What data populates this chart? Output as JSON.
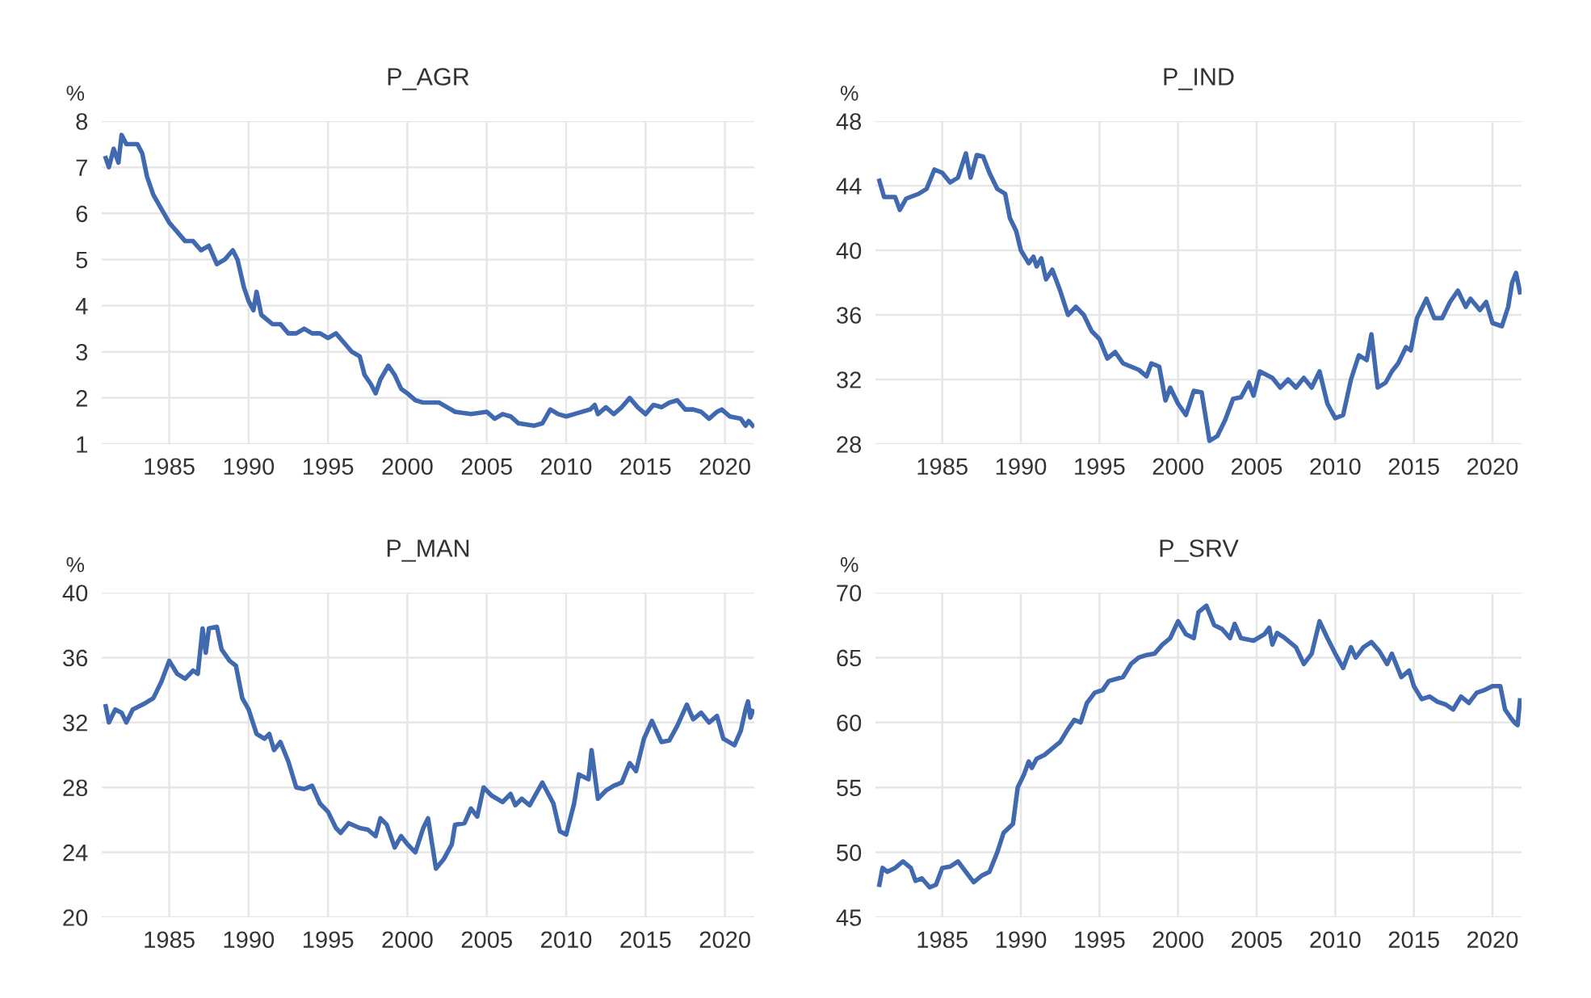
{
  "chart_data": [
    {
      "type": "line",
      "title": "P_AGR",
      "ylabel": "%",
      "xlim": [
        1980.75,
        2021.85
      ],
      "ylim": [
        1,
        8
      ],
      "xticks": [
        1985,
        1990,
        1995,
        2000,
        2005,
        2010,
        2015,
        2020
      ],
      "yticks": [
        1,
        2,
        3,
        4,
        5,
        6,
        7,
        8
      ],
      "grid": true,
      "x": [
        1981.0,
        1981.2,
        1981.5,
        1981.8,
        1982.0,
        1982.3,
        1983.0,
        1983.3,
        1983.6,
        1984.0,
        1984.5,
        1985.0,
        1985.5,
        1986.0,
        1986.5,
        1987.0,
        1987.5,
        1988.0,
        1988.5,
        1989.0,
        1989.3,
        1989.7,
        1990.0,
        1990.3,
        1990.5,
        1990.8,
        1991.5,
        1992.0,
        1992.5,
        1993.0,
        1993.5,
        1994.0,
        1994.5,
        1995.0,
        1995.5,
        1996.0,
        1996.5,
        1997.0,
        1997.3,
        1997.7,
        1998.0,
        1998.3,
        1998.8,
        1999.2,
        1999.6,
        2000.0,
        2000.5,
        2001.0,
        2002.0,
        2002.5,
        2003.0,
        2004.0,
        2005.0,
        2005.5,
        2006.0,
        2006.5,
        2007.0,
        2008.0,
        2008.5,
        2009.0,
        2009.5,
        2010.0,
        2010.5,
        2011.5,
        2011.8,
        2012.0,
        2012.5,
        2013.0,
        2013.5,
        2014.0,
        2014.5,
        2015.0,
        2015.5,
        2016.0,
        2016.5,
        2017.0,
        2017.5,
        2018.0,
        2018.5,
        2019.0,
        2019.5,
        2019.8,
        2020.3,
        2021.0,
        2021.3,
        2021.5,
        2021.75
      ],
      "series": [
        {
          "color": "#4169b0",
          "values": [
            7.2,
            7.0,
            7.4,
            7.1,
            7.7,
            7.5,
            7.5,
            7.3,
            6.8,
            6.4,
            6.1,
            5.8,
            5.6,
            5.4,
            5.4,
            5.2,
            5.3,
            4.9,
            5.0,
            5.2,
            5.0,
            4.4,
            4.1,
            3.9,
            4.3,
            3.8,
            3.6,
            3.6,
            3.4,
            3.4,
            3.5,
            3.4,
            3.4,
            3.3,
            3.4,
            3.2,
            3.0,
            2.9,
            2.5,
            2.3,
            2.1,
            2.4,
            2.7,
            2.5,
            2.2,
            2.1,
            1.95,
            1.9,
            1.9,
            1.8,
            1.7,
            1.65,
            1.7,
            1.55,
            1.65,
            1.6,
            1.45,
            1.4,
            1.45,
            1.75,
            1.65,
            1.6,
            1.65,
            1.75,
            1.85,
            1.65,
            1.8,
            1.65,
            1.8,
            2.0,
            1.8,
            1.65,
            1.85,
            1.8,
            1.9,
            1.95,
            1.75,
            1.75,
            1.7,
            1.55,
            1.7,
            1.75,
            1.6,
            1.55,
            1.4,
            1.5,
            1.4
          ]
        }
      ]
    },
    {
      "type": "line",
      "title": "P_IND",
      "ylabel": "%",
      "xlim": [
        1980.75,
        2021.85
      ],
      "ylim": [
        28,
        48
      ],
      "xticks": [
        1985,
        1990,
        1995,
        2000,
        2005,
        2010,
        2015,
        2020
      ],
      "yticks": [
        28,
        32,
        36,
        40,
        44,
        48
      ],
      "grid": true,
      "x": [
        1981.0,
        1981.3,
        1982.0,
        1982.3,
        1982.7,
        1983.5,
        1984.0,
        1984.5,
        1985.0,
        1985.5,
        1986.0,
        1986.5,
        1986.8,
        1987.2,
        1987.6,
        1988.0,
        1988.5,
        1989.0,
        1989.3,
        1989.7,
        1990.0,
        1990.5,
        1990.8,
        1991.0,
        1991.3,
        1991.6,
        1992.0,
        1992.5,
        1993.0,
        1993.5,
        1994.0,
        1994.5,
        1995.0,
        1995.5,
        1996.0,
        1996.5,
        1997.0,
        1997.5,
        1998.0,
        1998.3,
        1998.8,
        1999.2,
        1999.5,
        2000.0,
        2000.5,
        2001.0,
        2001.5,
        2002.0,
        2002.5,
        2003.0,
        2003.5,
        2004.0,
        2004.5,
        2004.8,
        2005.2,
        2006.0,
        2006.5,
        2007.0,
        2007.5,
        2008.0,
        2008.5,
        2009.0,
        2009.5,
        2010.0,
        2010.5,
        2011.0,
        2011.5,
        2012.0,
        2012.3,
        2012.7,
        2013.2,
        2013.6,
        2014.0,
        2014.5,
        2014.8,
        2015.2,
        2015.8,
        2016.3,
        2016.8,
        2017.3,
        2017.8,
        2018.3,
        2018.6,
        2019.2,
        2019.6,
        2020.0,
        2020.6,
        2021.0,
        2021.25,
        2021.5,
        2021.75
      ],
      "series": [
        {
          "color": "#4169b0",
          "values": [
            44.3,
            43.3,
            43.3,
            42.5,
            43.2,
            43.5,
            43.8,
            45.0,
            44.8,
            44.2,
            44.5,
            46.0,
            44.5,
            45.9,
            45.8,
            44.8,
            43.8,
            43.5,
            42.0,
            41.2,
            40.0,
            39.2,
            39.6,
            39.0,
            39.5,
            38.2,
            38.8,
            37.5,
            36.0,
            36.5,
            36.0,
            35.0,
            34.5,
            33.3,
            33.7,
            33.0,
            32.8,
            32.6,
            32.2,
            33.0,
            32.8,
            30.7,
            31.5,
            30.5,
            29.8,
            31.3,
            31.2,
            28.2,
            28.5,
            29.5,
            30.8,
            30.9,
            31.8,
            31.0,
            32.5,
            32.1,
            31.5,
            32.0,
            31.5,
            32.1,
            31.5,
            32.5,
            30.5,
            29.6,
            29.8,
            32.0,
            33.5,
            33.2,
            34.8,
            31.5,
            31.8,
            32.5,
            33.0,
            34.0,
            33.8,
            35.8,
            37.0,
            35.8,
            35.8,
            36.8,
            37.5,
            36.5,
            37.0,
            36.3,
            36.8,
            35.5,
            35.3,
            36.5,
            38.0,
            38.6,
            37.4
          ]
        }
      ]
    },
    {
      "type": "line",
      "title": "P_MAN",
      "ylabel": "%",
      "xlim": [
        1980.75,
        2021.85
      ],
      "ylim": [
        20,
        40
      ],
      "xticks": [
        1985,
        1990,
        1995,
        2000,
        2005,
        2010,
        2015,
        2020
      ],
      "yticks": [
        20,
        24,
        28,
        32,
        36,
        40
      ],
      "grid": true,
      "x": [
        1981.0,
        1981.2,
        1981.6,
        1982.0,
        1982.3,
        1982.7,
        1983.5,
        1984.0,
        1984.5,
        1985.0,
        1985.5,
        1986.0,
        1986.5,
        1986.8,
        1987.1,
        1987.3,
        1987.5,
        1988.0,
        1988.3,
        1988.8,
        1989.2,
        1989.6,
        1990.0,
        1990.5,
        1991.0,
        1991.3,
        1991.6,
        1992.0,
        1992.5,
        1993.0,
        1993.5,
        1994.0,
        1994.5,
        1995.0,
        1995.5,
        1995.8,
        1996.3,
        1997.0,
        1997.5,
        1998.0,
        1998.3,
        1998.7,
        1999.2,
        1999.6,
        2000.0,
        2000.5,
        2001.0,
        2001.3,
        2001.8,
        2002.3,
        2002.8,
        2003.0,
        2003.6,
        2004.0,
        2004.4,
        2004.8,
        2005.3,
        2006.0,
        2006.5,
        2006.8,
        2007.2,
        2007.7,
        2008.5,
        2009.2,
        2009.6,
        2010.0,
        2010.5,
        2010.8,
        2011.4,
        2011.6,
        2012.0,
        2012.5,
        2013.0,
        2013.5,
        2014.0,
        2014.4,
        2014.9,
        2015.4,
        2016.0,
        2016.5,
        2017.0,
        2017.6,
        2018.0,
        2018.5,
        2019.0,
        2019.5,
        2019.9,
        2020.6,
        2021.0,
        2021.3,
        2021.45,
        2021.6,
        2021.75
      ],
      "series": [
        {
          "color": "#4169b0",
          "values": [
            33.0,
            32.0,
            32.8,
            32.6,
            32.0,
            32.8,
            33.2,
            33.5,
            34.5,
            35.8,
            35.0,
            34.7,
            35.2,
            35.0,
            37.8,
            36.3,
            37.8,
            37.9,
            36.5,
            35.8,
            35.5,
            33.5,
            32.8,
            31.3,
            31.0,
            31.3,
            30.3,
            30.8,
            29.6,
            28.0,
            27.9,
            28.1,
            27.0,
            26.5,
            25.5,
            25.2,
            25.8,
            25.5,
            25.4,
            25.0,
            26.1,
            25.7,
            24.3,
            25.0,
            24.5,
            24.0,
            25.5,
            26.1,
            23.0,
            23.6,
            24.5,
            25.7,
            25.8,
            26.7,
            26.2,
            28.0,
            27.5,
            27.1,
            27.6,
            26.9,
            27.3,
            26.9,
            28.3,
            27.0,
            25.3,
            25.1,
            27.0,
            28.8,
            28.5,
            30.3,
            27.3,
            27.8,
            28.1,
            28.3,
            29.5,
            29.0,
            31.0,
            32.1,
            30.8,
            30.9,
            31.8,
            33.1,
            32.2,
            32.6,
            32.0,
            32.4,
            31.0,
            30.6,
            31.5,
            32.8,
            33.3,
            32.3,
            32.7
          ]
        }
      ]
    },
    {
      "type": "line",
      "title": "P_SRV",
      "ylabel": "%",
      "xlim": [
        1980.75,
        2021.85
      ],
      "ylim": [
        45,
        70
      ],
      "xticks": [
        1985,
        1990,
        1995,
        2000,
        2005,
        2010,
        2015,
        2020
      ],
      "yticks": [
        45,
        50,
        55,
        60,
        65,
        70
      ],
      "grid": true,
      "x": [
        1981.0,
        1981.2,
        1981.5,
        1982.0,
        1982.5,
        1983.0,
        1983.3,
        1983.7,
        1984.2,
        1984.6,
        1985.0,
        1985.5,
        1986.0,
        1986.5,
        1987.0,
        1987.5,
        1988.0,
        1988.5,
        1988.9,
        1989.5,
        1989.8,
        1990.2,
        1990.5,
        1990.7,
        1991.0,
        1991.5,
        1992.0,
        1992.5,
        1993.0,
        1993.4,
        1993.8,
        1994.2,
        1994.7,
        1995.2,
        1995.6,
        1996.5,
        1997.0,
        1997.5,
        1998.0,
        1998.5,
        1999.0,
        1999.5,
        2000.0,
        2000.5,
        2001.0,
        2001.3,
        2001.8,
        2002.3,
        2002.8,
        2003.3,
        2003.6,
        2004.0,
        2004.8,
        2005.5,
        2005.8,
        2006.0,
        2006.3,
        2006.8,
        2007.5,
        2008.0,
        2008.5,
        2009.0,
        2009.5,
        2010.0,
        2010.5,
        2011.0,
        2011.3,
        2011.8,
        2012.3,
        2012.8,
        2013.3,
        2013.6,
        2014.2,
        2014.7,
        2015.0,
        2015.5,
        2016.0,
        2016.5,
        2017.0,
        2017.5,
        2018.0,
        2018.5,
        2019.0,
        2019.5,
        2020.0,
        2020.5,
        2020.8,
        2021.2,
        2021.4,
        2021.6,
        2021.75
      ],
      "series": [
        {
          "color": "#4169b0",
          "values": [
            47.5,
            48.8,
            48.5,
            48.8,
            49.3,
            48.8,
            47.8,
            48.0,
            47.3,
            47.5,
            48.8,
            48.9,
            49.3,
            48.5,
            47.7,
            48.2,
            48.5,
            50.0,
            51.5,
            52.2,
            55.0,
            56.0,
            57.0,
            56.5,
            57.2,
            57.5,
            58.0,
            58.5,
            59.5,
            60.2,
            60.0,
            61.5,
            62.3,
            62.5,
            63.2,
            63.5,
            64.5,
            65.0,
            65.2,
            65.3,
            66.0,
            66.5,
            67.8,
            66.8,
            66.5,
            68.5,
            69.0,
            67.5,
            67.2,
            66.5,
            67.6,
            66.5,
            66.3,
            66.8,
            67.3,
            66.0,
            66.9,
            66.5,
            65.8,
            64.5,
            65.3,
            67.8,
            66.5,
            65.3,
            64.2,
            65.8,
            65.0,
            65.8,
            66.2,
            65.5,
            64.5,
            65.3,
            63.5,
            64.0,
            62.8,
            61.8,
            62.0,
            61.6,
            61.4,
            61.0,
            62.0,
            61.5,
            62.3,
            62.5,
            62.8,
            62.8,
            61.0,
            60.3,
            60.0,
            59.8,
            61.7
          ]
        }
      ]
    }
  ]
}
